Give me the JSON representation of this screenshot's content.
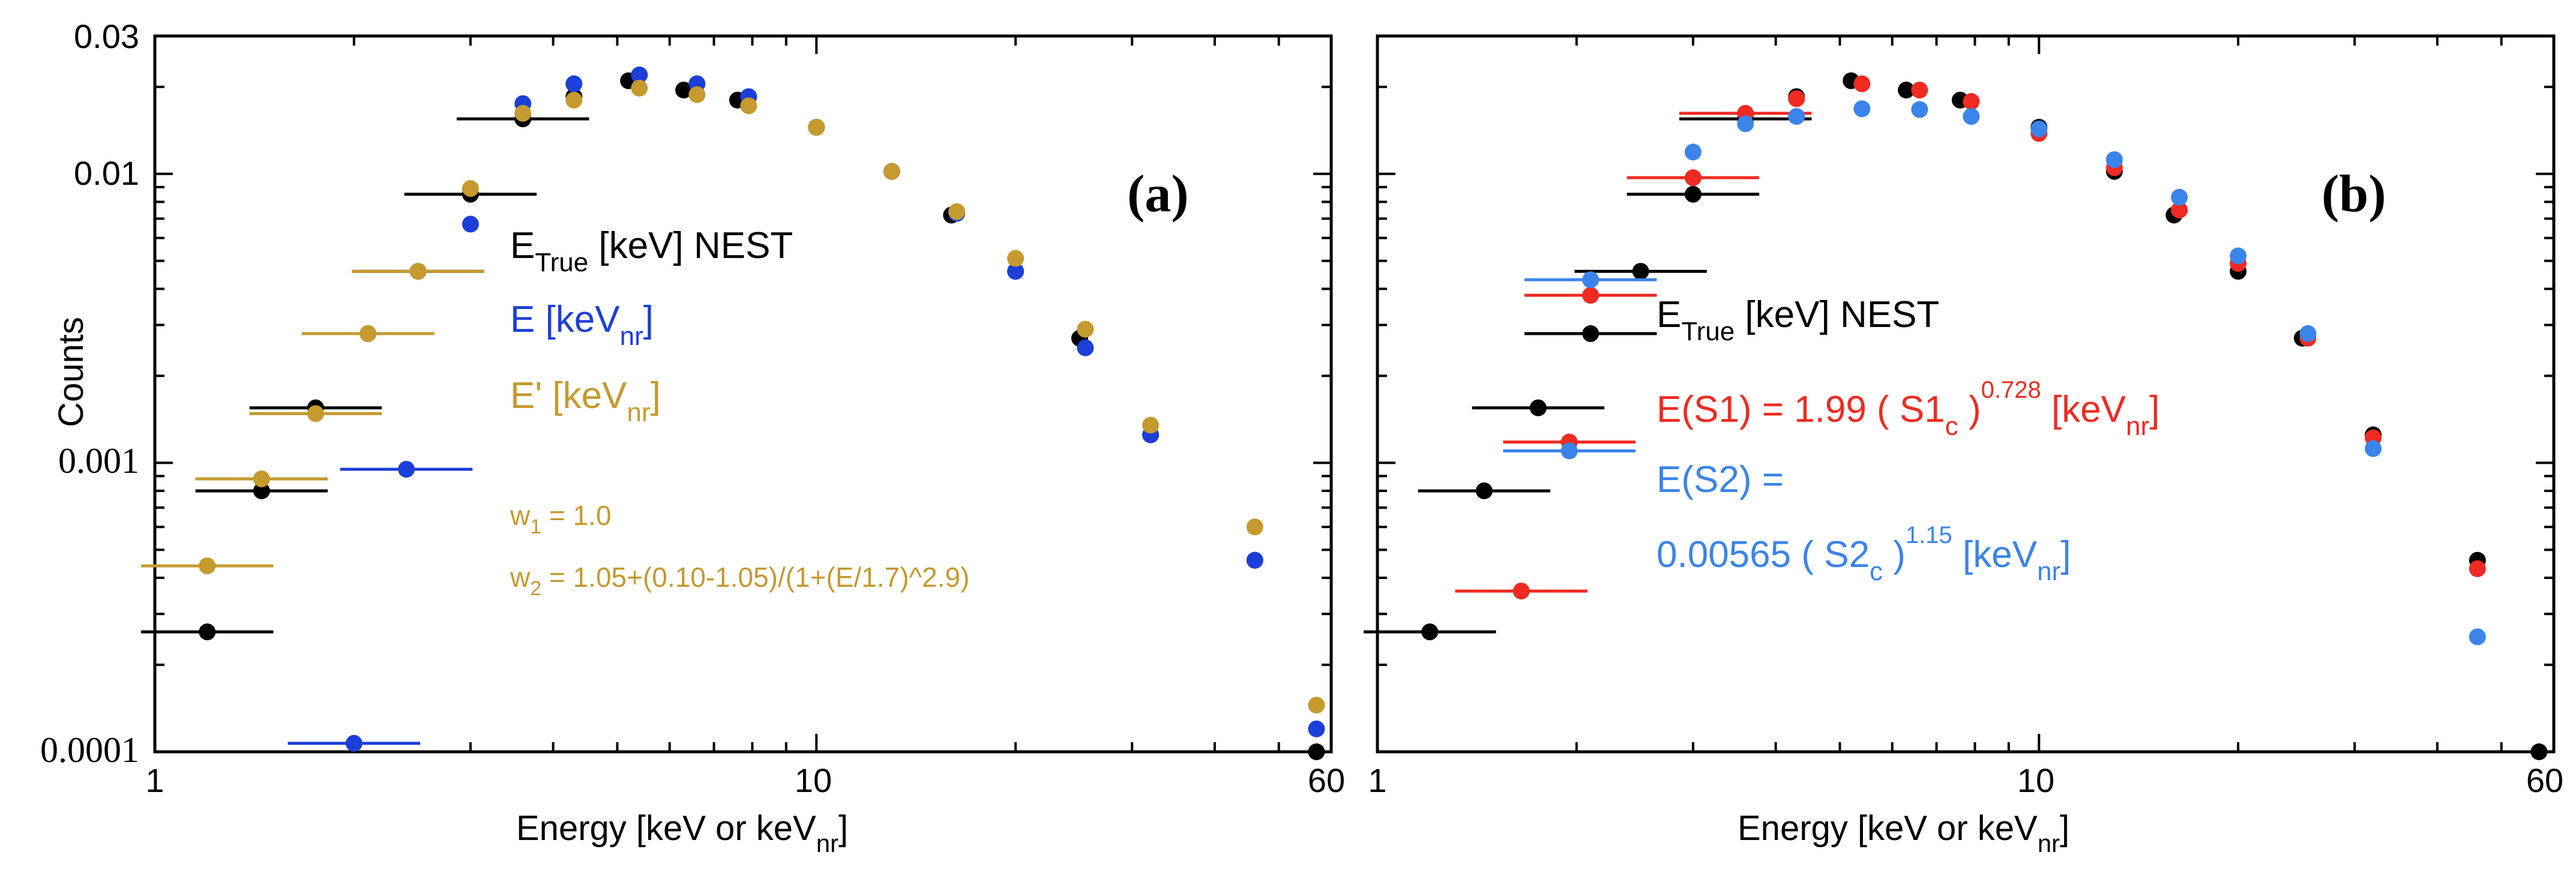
{
  "colors": {
    "true": "#000000",
    "blue": "#1b3fd8",
    "gold": "#c59a2e",
    "red": "#ef2a22",
    "lightblue": "#3a84ea"
  },
  "chart_data": [
    {
      "type": "scatter",
      "panel_label": "(a)",
      "xlabel": "Energy [keV or keV",
      "xlabel_sub": "nr",
      "xlabel_end": "]",
      "ylabel": "Counts",
      "xscale": "log",
      "yscale": "log",
      "xlim": [
        1,
        60
      ],
      "ylim": [
        0.0001,
        0.03
      ],
      "x_tick_labels": [
        {
          "value": 1,
          "label": "1"
        },
        {
          "value": 10,
          "label": "10"
        },
        {
          "value": 60,
          "label": "60"
        }
      ],
      "y_tick_labels": [
        {
          "value": 0.0001,
          "label": "0.0001"
        },
        {
          "value": 0.001,
          "label": "0.001"
        },
        {
          "value": 0.01,
          "label": "0.01"
        },
        {
          "value": 0.03,
          "label": "0.03"
        }
      ],
      "series": [
        {
          "name": "E_True [keV] NEST",
          "color": "#000000",
          "x": [
            1.2,
            1.45,
            1.75,
            2.1,
            2.5,
            3.0,
            3.6,
            4.3,
            5.2,
            6.3,
            7.6,
            10.0,
            13.0,
            16.0,
            20.0,
            25.0,
            32.0,
            46.0,
            57.0
          ],
          "y": [
            0.00026,
            0.0008,
            0.00155,
            0.0028,
            0.0046,
            0.0085,
            0.0155,
            0.0185,
            0.021,
            0.0195,
            0.018,
            0.0145,
            0.0102,
            0.0072,
            0.0046,
            0.0027,
            0.00125,
            0.00046,
            0.0001
          ],
          "xerr": [
            0.1,
            0.1,
            0.1,
            0.1,
            0.1,
            0.1,
            0.1,
            0,
            0,
            0,
            0,
            0,
            0,
            0,
            0,
            0,
            0,
            0,
            0
          ]
        },
        {
          "name": "E [keV_nr]",
          "color": "#1b3fd8",
          "x": [
            2.0,
            2.4,
            3.0,
            3.6,
            4.3,
            5.4,
            6.6,
            7.9,
            10.0,
            13.0,
            16.3,
            20.0,
            25.5,
            32.0,
            46.0,
            57.0
          ],
          "y": [
            0.000107,
            0.00095,
            0.0067,
            0.0175,
            0.0205,
            0.022,
            0.0205,
            0.0185,
            0.0145,
            0.0102,
            0.0073,
            0.0046,
            0.0025,
            0.00125,
            0.00046,
            0.00012
          ],
          "xerr": [
            0.1,
            0.1,
            0,
            0,
            0,
            0,
            0,
            0,
            0,
            0,
            0,
            0,
            0,
            0,
            0,
            0
          ]
        },
        {
          "name": "E' [keV_nr]",
          "color": "#c59a2e",
          "x": [
            1.2,
            1.45,
            1.75,
            2.1,
            2.5,
            3.0,
            3.6,
            4.3,
            5.4,
            6.6,
            7.9,
            10.0,
            13.0,
            16.3,
            20.0,
            25.5,
            32.0,
            46.0,
            57.0
          ],
          "y": [
            0.00044,
            0.00088,
            0.00148,
            0.0028,
            0.0046,
            0.0089,
            0.0162,
            0.018,
            0.0198,
            0.0188,
            0.0172,
            0.0145,
            0.0102,
            0.0074,
            0.0051,
            0.0029,
            0.00135,
            0.0006,
            0.000145
          ],
          "xerr": [
            0.1,
            0.1,
            0.1,
            0.1,
            0.1,
            0,
            0,
            0,
            0,
            0,
            0,
            0,
            0,
            0,
            0,
            0,
            0,
            0,
            0
          ]
        }
      ],
      "legend": [
        {
          "main": "E",
          "sub": "True",
          "rest": " [keV] NEST",
          "color": "#000000"
        },
        {
          "main": "E [keV",
          "sub": "nr",
          "rest": "]",
          "color": "#1b3fd8"
        },
        {
          "main": "E' [keV",
          "sub": "nr",
          "rest": "]",
          "color": "#c59a2e"
        }
      ],
      "weights": [
        {
          "main": "w",
          "sub": "1",
          "rest": " = 1.0"
        },
        {
          "main": "w",
          "sub": "2",
          "rest": " = 1.05+(0.10-1.05)/(1+(E/1.7)^2.9)"
        }
      ]
    },
    {
      "type": "scatter",
      "panel_label": "(b)",
      "xlabel": "Energy [keV or keV",
      "xlabel_sub": "nr",
      "xlabel_end": "]",
      "xscale": "log",
      "yscale": "log",
      "xlim": [
        1,
        60
      ],
      "ylim": [
        0.0001,
        0.03
      ],
      "x_tick_labels": [
        {
          "value": 1,
          "label": "1"
        },
        {
          "value": 10,
          "label": "10"
        },
        {
          "value": 60,
          "label": "60"
        }
      ],
      "series": [
        {
          "name": "E_True [keV] NEST",
          "color": "#000000",
          "x": [
            1.2,
            1.45,
            1.75,
            2.1,
            2.5,
            3.0,
            3.6,
            4.3,
            5.2,
            6.3,
            7.6,
            10.0,
            13.0,
            16.0,
            20.0,
            25.0,
            32.0,
            46.0,
            57.0
          ],
          "y": [
            0.00026,
            0.0008,
            0.00155,
            0.0028,
            0.0046,
            0.0085,
            0.0155,
            0.0185,
            0.021,
            0.0195,
            0.018,
            0.0145,
            0.0102,
            0.0072,
            0.0046,
            0.0027,
            0.00125,
            0.00046,
            0.0001
          ],
          "xerr": [
            0.1,
            0.1,
            0.1,
            0.1,
            0.1,
            0.1,
            0.1,
            0,
            0,
            0,
            0,
            0,
            0,
            0,
            0,
            0,
            0,
            0,
            0
          ]
        },
        {
          "name": "E(S1) = 1.99 (S1_c)^0.728 [keV_nr]",
          "color": "#ef2a22",
          "x": [
            1.65,
            1.95,
            2.1,
            3.0,
            3.6,
            4.3,
            5.4,
            6.6,
            7.9,
            10.0,
            13.0,
            16.3,
            20.0,
            25.5,
            32.0,
            46.0
          ],
          "y": [
            0.00036,
            0.00118,
            0.0038,
            0.0097,
            0.0162,
            0.0182,
            0.0205,
            0.0195,
            0.0178,
            0.0138,
            0.0105,
            0.0075,
            0.0049,
            0.0027,
            0.00122,
            0.00043
          ],
          "xerr": [
            0.1,
            0.1,
            0.1,
            0.1,
            0.1,
            0,
            0,
            0,
            0,
            0,
            0,
            0,
            0,
            0,
            0,
            0
          ]
        },
        {
          "name": "E(S2) = 0.00565 (S2_c)^1.15 [keV_nr]",
          "color": "#3a84ea",
          "x": [
            1.95,
            2.1,
            3.0,
            3.6,
            4.3,
            5.4,
            6.6,
            7.9,
            10.0,
            13.0,
            16.3,
            20.0,
            25.5,
            32.0,
            46.0
          ],
          "y": [
            0.0011,
            0.0043,
            0.0119,
            0.0149,
            0.0158,
            0.0168,
            0.0167,
            0.0158,
            0.0143,
            0.0112,
            0.0083,
            0.0052,
            0.0028,
            0.00112,
            0.00025
          ],
          "xerr": [
            0.1,
            0.1,
            0,
            0,
            0,
            0,
            0,
            0,
            0,
            0,
            0,
            0,
            0,
            0,
            0
          ]
        }
      ],
      "legend": [
        {
          "main": "E",
          "sub": "True",
          "rest": " [keV] NEST",
          "color": "#000000"
        },
        {
          "main": "E(S1) = 1.99 ( S1",
          "sub": "c",
          "rest": " )",
          "sup": "0.728",
          "tail": " [keV",
          "tail_sub": "nr",
          "tail_end": "]",
          "color": "#ef2a22"
        },
        {
          "main": "E(S2) =",
          "color": "#3a84ea"
        },
        {
          "main": "0.00565 ( S2",
          "sub": "c",
          "rest": " )",
          "sup": "1.15",
          "tail": " [keV",
          "tail_sub": "nr",
          "tail_end": "]",
          "color": "#3a84ea"
        }
      ]
    }
  ]
}
